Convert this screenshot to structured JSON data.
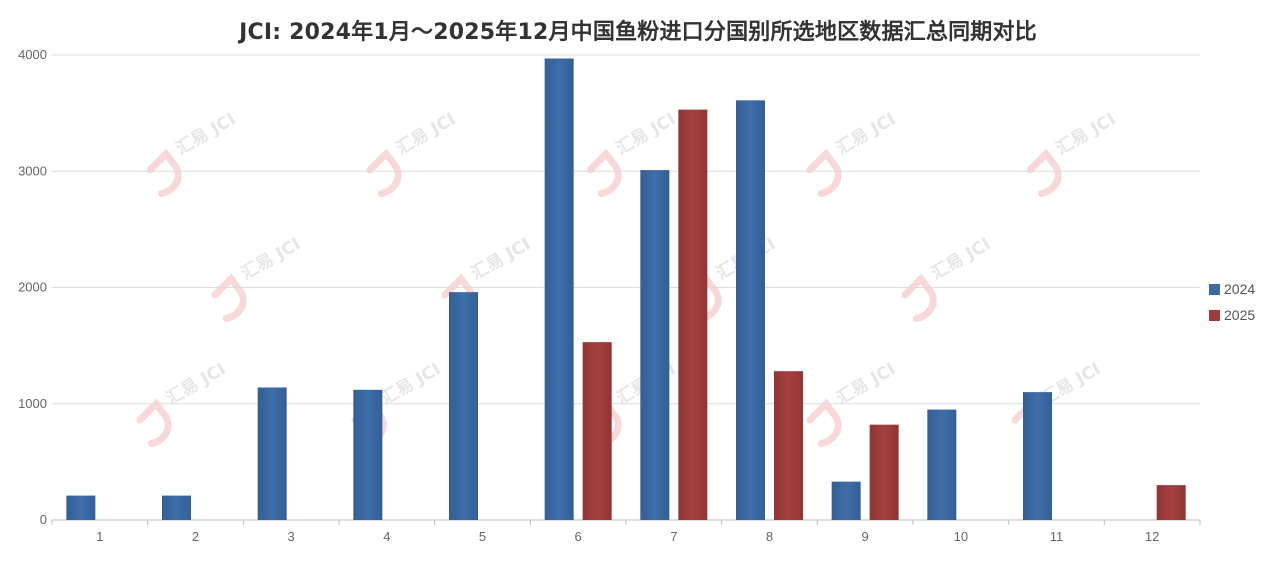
{
  "chart_data": {
    "type": "bar",
    "title": "JCI: 2024年1月～2025年12月中国鱼粉进口分国别所选地区数据汇总同期对比",
    "xlabel": "",
    "ylabel": "",
    "categories": [
      "1",
      "2",
      "3",
      "4",
      "5",
      "6",
      "7",
      "8",
      "9",
      "10",
      "11",
      "12"
    ],
    "series": [
      {
        "name": "2024",
        "color": "#3c6aa5",
        "values": [
          210,
          210,
          1140,
          1120,
          1960,
          3970,
          3010,
          3610,
          330,
          950,
          1100,
          null
        ]
      },
      {
        "name": "2025",
        "color": "#a03c3c",
        "values": [
          null,
          null,
          null,
          null,
          null,
          1530,
          3530,
          1280,
          820,
          null,
          null,
          300
        ]
      }
    ],
    "ylim": [
      0,
      4000
    ],
    "yticks": [
      0,
      1000,
      2000,
      3000,
      4000
    ],
    "grid": true,
    "legend_position": "right"
  },
  "watermark": {
    "text": "汇易 JCI"
  }
}
